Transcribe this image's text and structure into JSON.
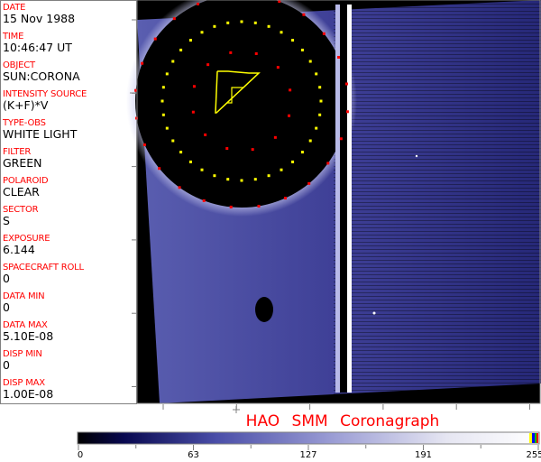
{
  "header_fields": [
    {
      "label": "DATE",
      "value": "15 Nov 1988"
    },
    {
      "label": "TIME",
      "value": "10:46:47 UT"
    },
    {
      "label": "OBJECT",
      "value": "SUN:CORONA"
    },
    {
      "label": "INTENSITY SOURCE",
      "value": "(K+F)*V"
    },
    {
      "label": "TYPE-OBS",
      "value": "WHITE LIGHT"
    },
    {
      "label": "FILTER",
      "value": "GREEN"
    },
    {
      "label": "POLAROID",
      "value": "CLEAR"
    },
    {
      "label": "SECTOR",
      "value": "S"
    },
    {
      "label": "EXPOSURE",
      "value": "6.144"
    },
    {
      "label": "SPACECRAFT ROLL",
      "value": "0"
    },
    {
      "label": "DATA MIN",
      "value": "0"
    },
    {
      "label": "DATA MAX",
      "value": "5.10E-08"
    },
    {
      "label": "DISP MIN",
      "value": "0"
    },
    {
      "label": "DISP MAX",
      "value": "1.00E-08"
    }
  ],
  "title": "HAO  SMM  Coronagraph",
  "colorbar": {
    "min": 0,
    "max": 255,
    "tick_labels": [
      "0",
      "63",
      "127",
      "191",
      "255"
    ],
    "colors": {
      "dark": "#000000",
      "mid": "#4a4ea8",
      "light": "#ffffff",
      "end_marks": [
        "#ffff00",
        "#0000ff",
        "#00c000",
        "#ff0000"
      ]
    }
  },
  "colors": {
    "label": "#ff0000",
    "overlay_yellow": "#ffff00",
    "overlay_red": "#ff0000"
  }
}
